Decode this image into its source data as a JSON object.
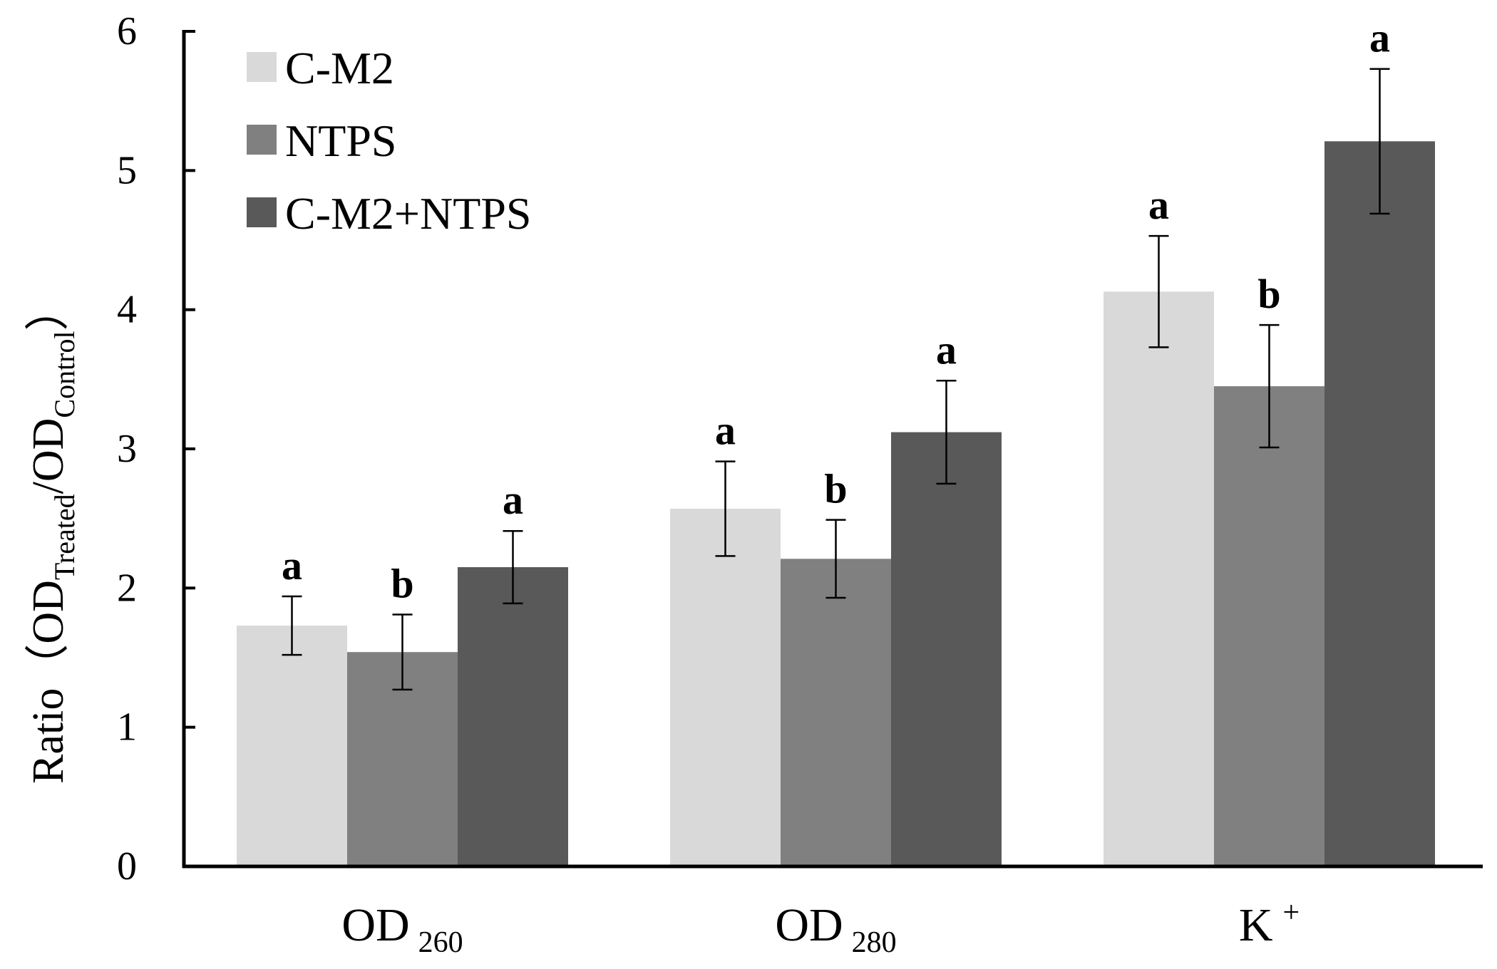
{
  "chart_data": {
    "type": "bar",
    "title": "",
    "ylabel": {
      "prefix": "Ratio（OD",
      "sub1": "Treated",
      "mid": "/OD",
      "sub2": "Control",
      "suffix": "）"
    },
    "xlabel": "",
    "ylim": [
      0,
      6
    ],
    "yticks": [
      "0",
      "1",
      "2",
      "3",
      "4",
      "5",
      "6"
    ],
    "categories": [
      {
        "main": "OD",
        "sub": "260",
        "sup": ""
      },
      {
        "main": "OD",
        "sub": "280",
        "sup": ""
      },
      {
        "main": "K",
        "sub": "",
        "sup": "+"
      }
    ],
    "series": [
      {
        "name": "C-M2",
        "color": "#d9d9d9",
        "values": [
          1.73,
          2.57,
          4.13
        ],
        "errors": [
          0.21,
          0.34,
          0.4
        ],
        "labels": [
          "a",
          "a",
          "a"
        ]
      },
      {
        "name": "NTPS",
        "color": "#808080",
        "values": [
          1.54,
          2.21,
          3.45
        ],
        "errors": [
          0.27,
          0.28,
          0.44
        ],
        "labels": [
          "b",
          "b",
          "b"
        ]
      },
      {
        "name": "C-M2+NTPS",
        "color": "#595959",
        "values": [
          2.15,
          3.12,
          5.21
        ],
        "errors": [
          0.26,
          0.37,
          0.52
        ],
        "labels": [
          "a",
          "a",
          "a"
        ]
      }
    ],
    "legend": "top-left",
    "grid": false
  }
}
